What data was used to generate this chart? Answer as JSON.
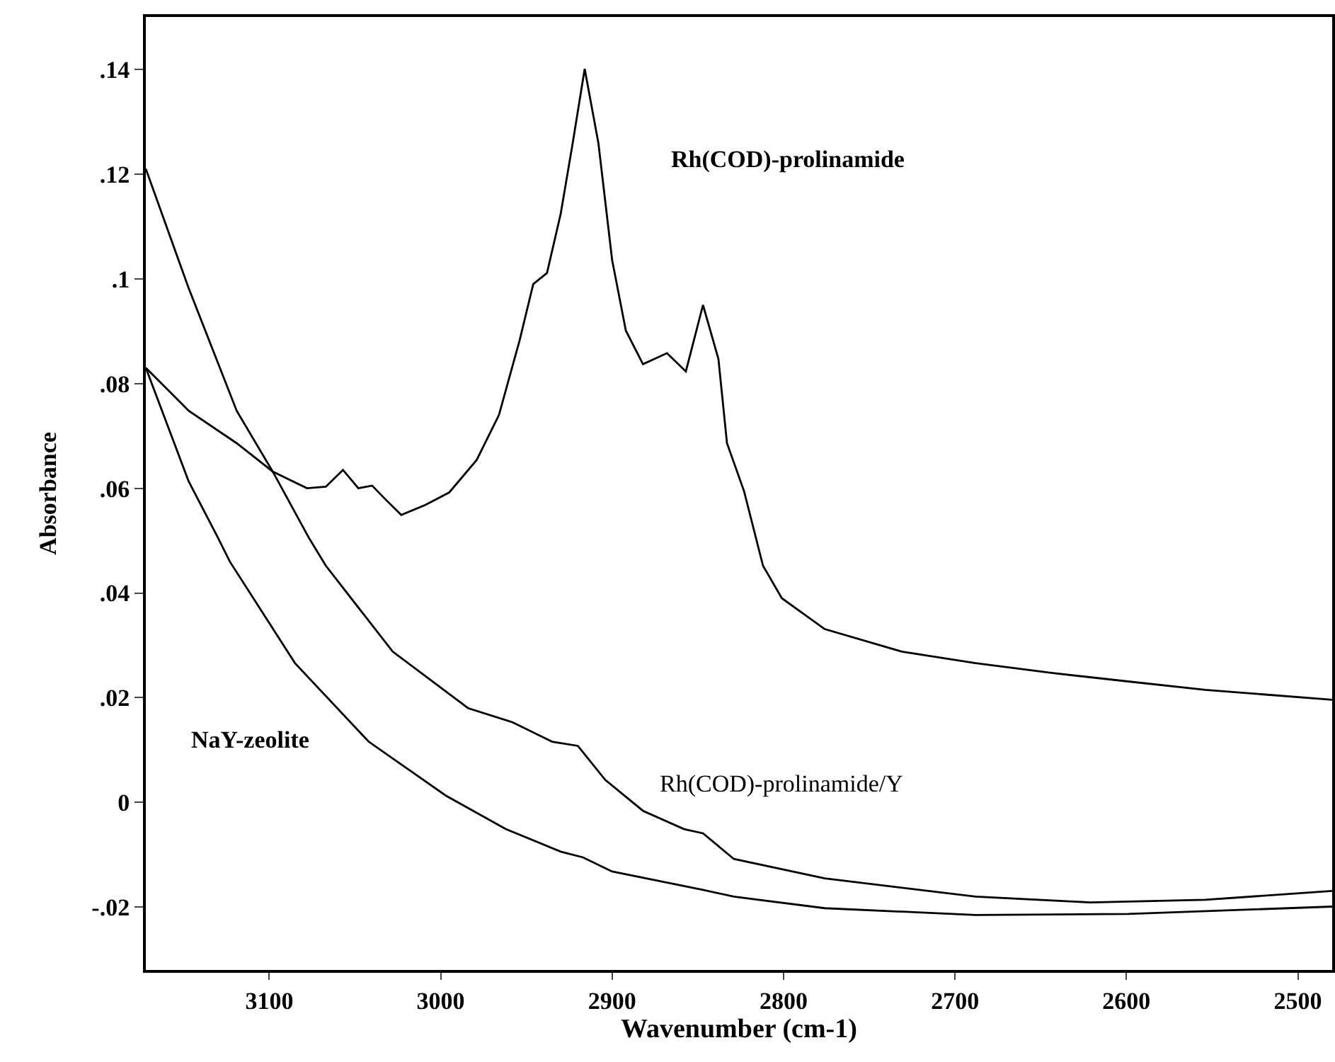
{
  "chart_data": {
    "type": "line",
    "xlabel": "Wavenumber (cm-1)",
    "ylabel": "Absorbance",
    "xlim": [
      3172,
      2480
    ],
    "xticks": [
      3100,
      3000,
      2900,
      2800,
      2700,
      2600,
      2500
    ],
    "ylim": [
      -0.032,
      0.15
    ],
    "yticks": [
      {
        "value": -0.02,
        "label": "-.02"
      },
      0,
      {
        "value": 0.02,
        "label": ".02"
      },
      {
        "value": 0.04,
        "label": ".04"
      },
      {
        "value": 0.06,
        "label": ".06"
      },
      {
        "value": 0.08,
        "label": ".08"
      },
      {
        "value": 0.1,
        "label": ".1"
      },
      {
        "value": 0.12,
        "label": ".12"
      },
      {
        "value": 0.14,
        "label": ".14"
      }
    ],
    "grid": false,
    "legend": false,
    "marker": "none",
    "line_style": "solid",
    "series": [
      {
        "name": "Rh(COD)-prolinamide",
        "color": "#000000",
        "x": [
          3172,
          3147,
          3119,
          3098,
          3078,
          3067,
          3057,
          3048,
          3040,
          3032,
          3023,
          3009,
          2995,
          2979,
          2966,
          2954,
          2946,
          2938,
          2930,
          2923,
          2916,
          2908,
          2900,
          2892,
          2882,
          2868,
          2857,
          2847,
          2838,
          2833,
          2823,
          2812,
          2801,
          2776,
          2731,
          2688,
          2643,
          2599,
          2554,
          2480
        ],
        "values": [
          0.083,
          0.0748,
          0.0686,
          0.0632,
          0.06,
          0.0603,
          0.0635,
          0.06,
          0.0605,
          0.0578,
          0.0549,
          0.0568,
          0.0592,
          0.0654,
          0.074,
          0.0882,
          0.099,
          0.1011,
          0.1124,
          0.1259,
          0.1401,
          0.1259,
          0.1036,
          0.0901,
          0.0837,
          0.0858,
          0.0823,
          0.095,
          0.0847,
          0.0686,
          0.0594,
          0.0452,
          0.039,
          0.0331,
          0.0288,
          0.0266,
          0.0247,
          0.0231,
          0.0215,
          0.0196
        ]
      },
      {
        "name": "Rh(COD)-prolinamide/Y",
        "color": "#000000",
        "x": [
          3172,
          3147,
          3119,
          3098,
          3077,
          3067,
          3028,
          2984,
          2958,
          2935,
          2920,
          2904,
          2882,
          2858,
          2847,
          2829,
          2776,
          2688,
          2621,
          2554,
          2480
        ],
        "values": [
          0.121,
          0.0982,
          0.0748,
          0.0632,
          0.0506,
          0.0452,
          0.0288,
          0.018,
          0.0153,
          0.0116,
          0.0108,
          0.0043,
          -0.0016,
          -0.0051,
          -0.0059,
          -0.0108,
          -0.0145,
          -0.018,
          -0.0191,
          -0.0186,
          -0.0169
        ]
      },
      {
        "name": "NaY-zeolite",
        "color": "#000000",
        "x": [
          3172,
          3147,
          3130,
          3123,
          3085,
          3042,
          2997,
          2962,
          2930,
          2917,
          2900,
          2847,
          2829,
          2776,
          2688,
          2599,
          2480
        ],
        "values": [
          0.083,
          0.0613,
          0.0506,
          0.046,
          0.0266,
          0.0116,
          0.0013,
          -0.0051,
          -0.0094,
          -0.0105,
          -0.0132,
          -0.0167,
          -0.018,
          -0.0202,
          -0.0215,
          -0.0213,
          -0.0199
        ]
      }
    ]
  }
}
